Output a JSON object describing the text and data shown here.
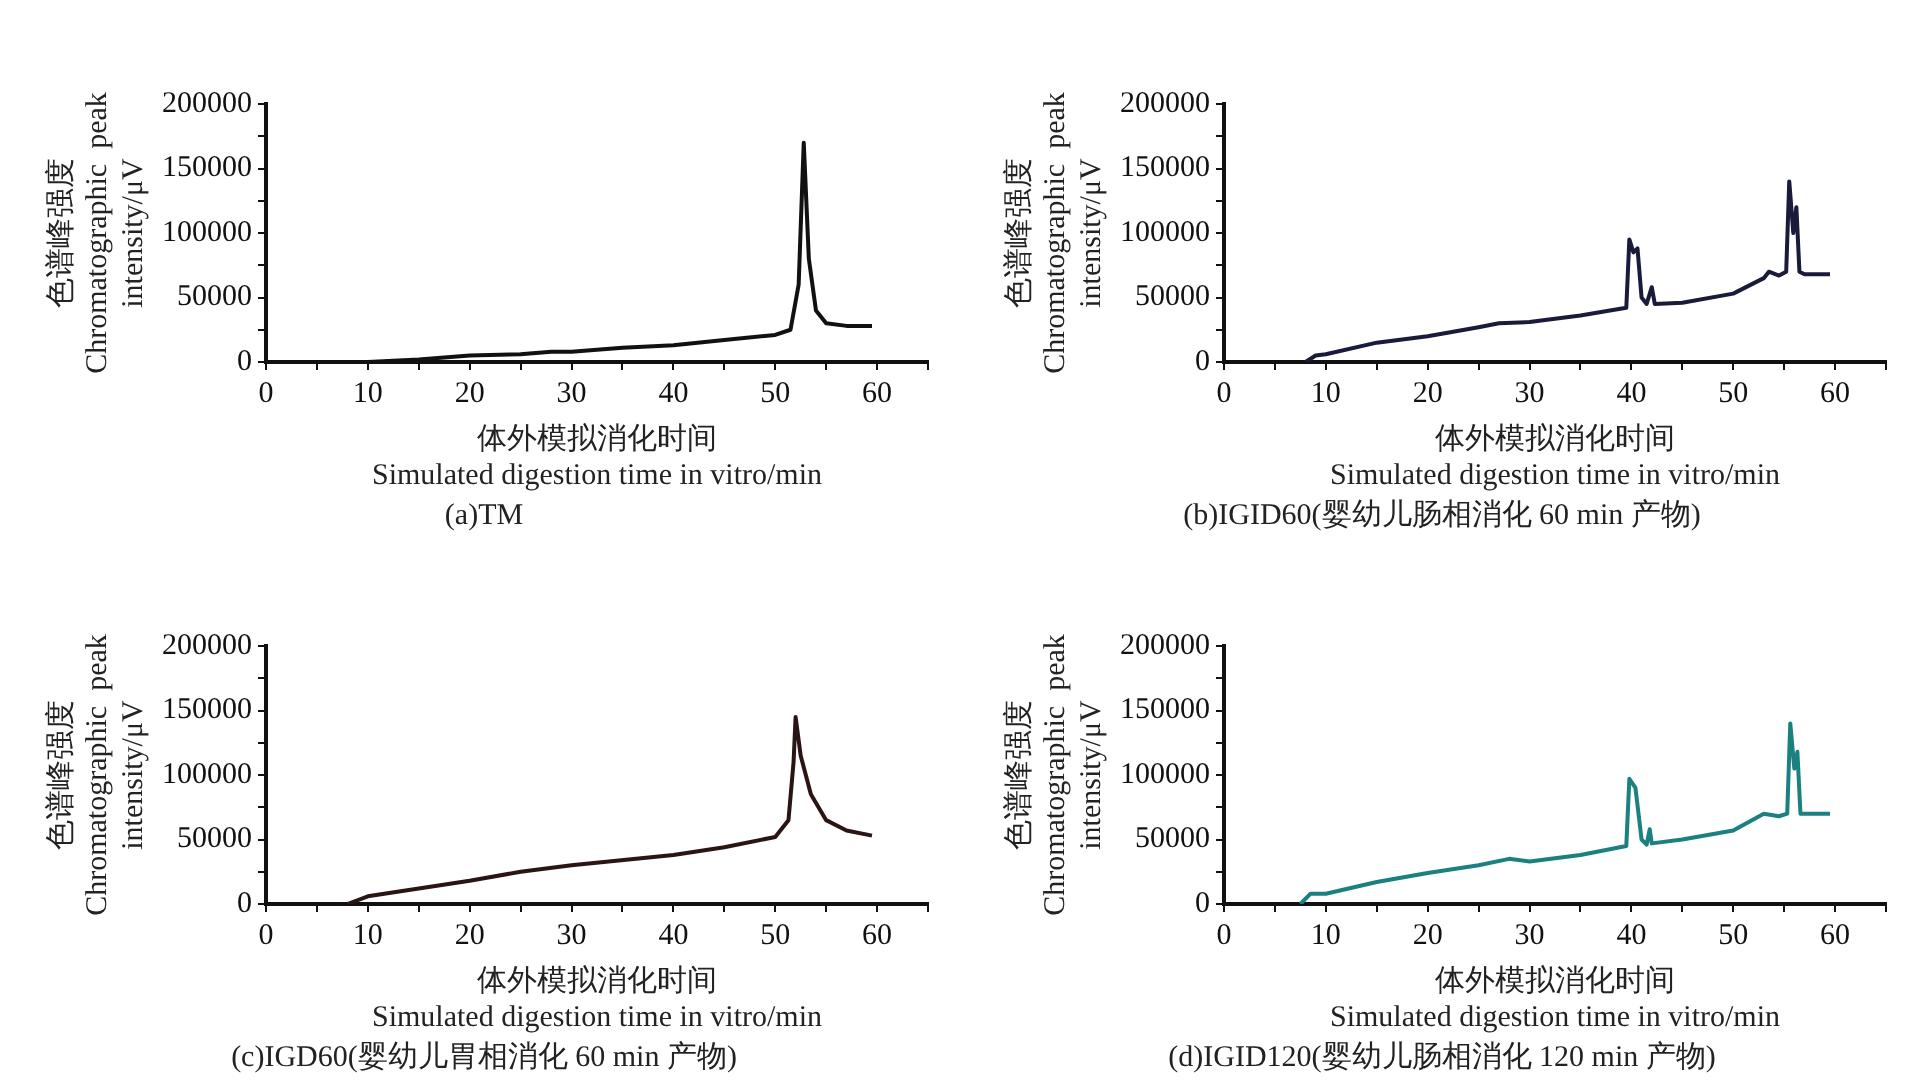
{
  "chart_data": [
    {
      "type": "line",
      "title": "(a)TM",
      "xlabel": "体外模拟消化时间\nSimulated digestion time in vitro/min",
      "ylabel": "色谱峰强度\nChromatographic  peak\nintensity/μV",
      "marker": "none",
      "grid": false,
      "legend": false,
      "xlim": [
        0,
        65
      ],
      "ylim": [
        0,
        200000
      ],
      "xticks": [
        0,
        {
          "value": 5,
          "label": null
        },
        10,
        {
          "value": 15,
          "label": null
        },
        20,
        {
          "value": 25,
          "label": null
        },
        30,
        {
          "value": 35,
          "label": null
        },
        40,
        {
          "value": 45,
          "label": null
        },
        50,
        {
          "value": 55,
          "label": null
        },
        60,
        {
          "value": 65,
          "label": null
        }
      ],
      "yticks": [
        0,
        {
          "value": 25000,
          "label": null
        },
        50000,
        {
          "value": 75000,
          "label": null
        },
        100000,
        {
          "value": 125000,
          "label": null
        },
        150000,
        {
          "value": 175000,
          "label": null
        },
        200000
      ],
      "series": [
        {
          "color": "#111111",
          "x": [
            10,
            15,
            20,
            25,
            28,
            30,
            35,
            40,
            45,
            50,
            51.5,
            52.3,
            52.8,
            53.3,
            54,
            55,
            57,
            59.5
          ],
          "values": [
            0,
            2000,
            5000,
            6000,
            8000,
            8000,
            11000,
            13000,
            17000,
            21000,
            25000,
            60000,
            170000,
            80000,
            40000,
            30000,
            28000,
            28000
          ]
        }
      ]
    },
    {
      "type": "line",
      "title": "(b)IGID60(婴幼儿肠相消化 60 min 产物)",
      "xlabel": "体外模拟消化时间\nSimulated digestion time in vitro/min",
      "ylabel": "色谱峰强度\nChromatographic  peak\nintensity/μV",
      "marker": "none",
      "grid": false,
      "legend": false,
      "xlim": [
        0,
        65
      ],
      "ylim": [
        0,
        200000
      ],
      "xticks": [
        0,
        {
          "value": 5,
          "label": null
        },
        10,
        {
          "value": 15,
          "label": null
        },
        20,
        {
          "value": 25,
          "label": null
        },
        30,
        {
          "value": 35,
          "label": null
        },
        40,
        {
          "value": 45,
          "label": null
        },
        50,
        {
          "value": 55,
          "label": null
        },
        60,
        {
          "value": 65,
          "label": null
        }
      ],
      "yticks": [
        0,
        {
          "value": 25000,
          "label": null
        },
        50000,
        {
          "value": 75000,
          "label": null
        },
        100000,
        {
          "value": 125000,
          "label": null
        },
        150000,
        {
          "value": 175000,
          "label": null
        },
        200000
      ],
      "series": [
        {
          "color": "#1a1a3a",
          "x": [
            8,
            9,
            10,
            15,
            20,
            25,
            27,
            30,
            35,
            39.5,
            39.8,
            40.2,
            40.6,
            41,
            41.5,
            42,
            42.3,
            45,
            50,
            53,
            53.5,
            54.5,
            55.2,
            55.5,
            55.9,
            56.2,
            56.5,
            57,
            59.5
          ],
          "values": [
            0,
            5000,
            6000,
            15000,
            20000,
            27000,
            30000,
            31000,
            36000,
            42000,
            95000,
            85000,
            88000,
            50000,
            45000,
            58000,
            45000,
            46000,
            53000,
            65000,
            70000,
            67000,
            70000,
            140000,
            100000,
            120000,
            70000,
            68000,
            68000
          ]
        }
      ]
    },
    {
      "type": "line",
      "title": "(c)IGD60(婴幼儿胃相消化 60 min 产物)",
      "xlabel": "体外模拟消化时间\nSimulated digestion time in vitro/min",
      "ylabel": "色谱峰强度\nChromatographic  peak\nintensity/μV",
      "marker": "none",
      "grid": false,
      "legend": false,
      "xlim": [
        0,
        65
      ],
      "ylim": [
        0,
        200000
      ],
      "xticks": [
        0,
        {
          "value": 5,
          "label": null
        },
        10,
        {
          "value": 15,
          "label": null
        },
        20,
        {
          "value": 25,
          "label": null
        },
        30,
        {
          "value": 35,
          "label": null
        },
        40,
        {
          "value": 45,
          "label": null
        },
        50,
        {
          "value": 55,
          "label": null
        },
        60,
        {
          "value": 65,
          "label": null
        }
      ],
      "yticks": [
        0,
        {
          "value": 25000,
          "label": null
        },
        50000,
        {
          "value": 75000,
          "label": null
        },
        100000,
        {
          "value": 125000,
          "label": null
        },
        150000,
        {
          "value": 175000,
          "label": null
        },
        200000
      ],
      "series": [
        {
          "color": "#2a1414",
          "x": [
            8,
            10,
            20,
            25,
            30,
            40,
            45,
            50,
            51.3,
            51.8,
            52,
            52.5,
            53.5,
            55,
            57,
            59.5
          ],
          "values": [
            0,
            6000,
            18000,
            25000,
            30000,
            38000,
            44000,
            52000,
            65000,
            110000,
            145000,
            115000,
            85000,
            65000,
            57000,
            53000
          ]
        }
      ]
    },
    {
      "type": "line",
      "title": "(d)IGID120(婴幼儿肠相消化 120 min 产物)",
      "xlabel": "体外模拟消化时间\nSimulated digestion time in vitro/min",
      "ylabel": "色谱峰强度\nChromatographic  peak\nintensity/μV",
      "marker": "none",
      "grid": false,
      "legend": false,
      "xlim": [
        0,
        65
      ],
      "ylim": [
        0,
        200000
      ],
      "xticks": [
        0,
        {
          "value": 5,
          "label": null
        },
        10,
        {
          "value": 15,
          "label": null
        },
        20,
        {
          "value": 25,
          "label": null
        },
        30,
        {
          "value": 35,
          "label": null
        },
        40,
        {
          "value": 45,
          "label": null
        },
        50,
        {
          "value": 55,
          "label": null
        },
        60,
        {
          "value": 65,
          "label": null
        }
      ],
      "yticks": [
        0,
        {
          "value": 25000,
          "label": null
        },
        50000,
        {
          "value": 75000,
          "label": null
        },
        100000,
        {
          "value": 125000,
          "label": null
        },
        150000,
        {
          "value": 175000,
          "label": null
        },
        200000
      ],
      "series": [
        {
          "color": "#1a8080",
          "x": [
            7.5,
            8.5,
            10,
            15,
            20,
            25,
            28,
            30,
            35,
            39.5,
            39.8,
            40.4,
            41,
            41.5,
            41.8,
            42,
            45,
            50,
            53,
            54.5,
            55.3,
            55.6,
            56,
            56.3,
            56.6,
            59.5
          ],
          "values": [
            0,
            8000,
            8000,
            17000,
            24000,
            30000,
            35000,
            33000,
            38000,
            45000,
            97000,
            90000,
            50000,
            46000,
            58000,
            47000,
            50000,
            57000,
            70000,
            68000,
            70000,
            140000,
            105000,
            118000,
            70000,
            70000
          ]
        }
      ]
    }
  ]
}
